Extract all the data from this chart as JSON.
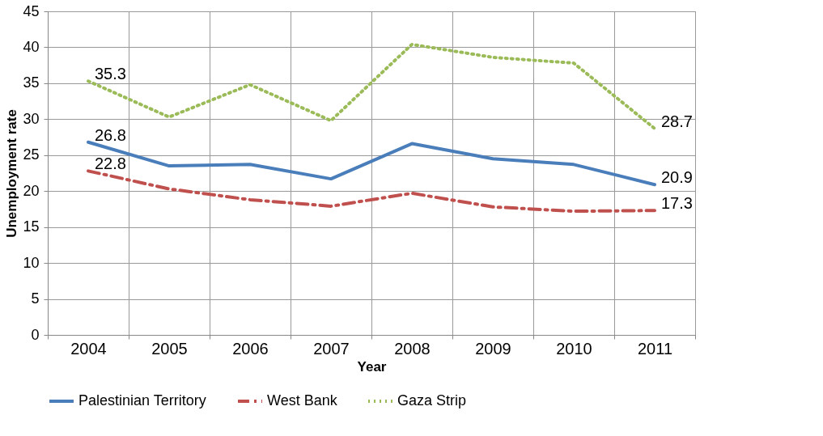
{
  "chart_data": {
    "type": "line",
    "xlabel": "Year",
    "ylabel": "Unemployment rate",
    "categories": [
      "2004",
      "2005",
      "2006",
      "2007",
      "2008",
      "2009",
      "2010",
      "2011"
    ],
    "series": [
      {
        "name": "Palestinian Territory",
        "color": "#4a7ebb",
        "line_style": "solid",
        "values": [
          26.8,
          23.5,
          23.7,
          21.7,
          26.6,
          24.5,
          23.7,
          20.9
        ],
        "value_labels": [
          "26.8",
          null,
          null,
          null,
          null,
          null,
          null,
          "20.9"
        ]
      },
      {
        "name": "West Bank",
        "color": "#c0504d",
        "line_style": "dashed",
        "values": [
          22.8,
          20.3,
          18.8,
          17.9,
          19.7,
          17.8,
          17.2,
          17.3
        ],
        "value_labels": [
          "22.8",
          null,
          null,
          null,
          null,
          null,
          null,
          "17.3"
        ]
      },
      {
        "name": "Gaza Strip",
        "color": "#9bbb59",
        "line_style": "dotted",
        "values": [
          35.3,
          30.3,
          34.8,
          29.8,
          40.4,
          38.6,
          37.8,
          28.7
        ],
        "value_labels": [
          "35.3",
          null,
          null,
          null,
          null,
          null,
          null,
          "28.7"
        ]
      }
    ],
    "ylim": [
      0,
      45
    ],
    "yticks": [
      0,
      5,
      10,
      15,
      20,
      25,
      30,
      35,
      40,
      45
    ],
    "grid": true,
    "legend": "bottom",
    "marker": "none"
  }
}
